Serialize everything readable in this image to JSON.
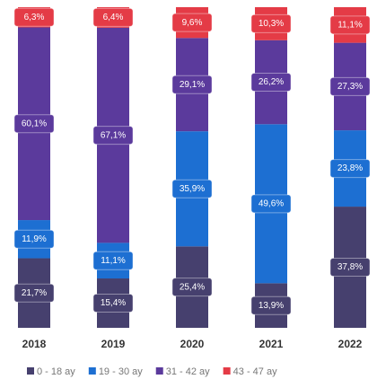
{
  "chart_data": {
    "type": "stacked_bar_percent",
    "categories": [
      "2018",
      "2019",
      "2020",
      "2021",
      "2022"
    ],
    "series": [
      {
        "name": "0 - 18 ay",
        "color": "#46406e",
        "values": [
          21.7,
          15.4,
          25.4,
          13.9,
          37.8
        ],
        "value_labels": [
          "21,7%",
          "15,4%",
          "25,4%",
          "13,9%",
          "37,8%"
        ]
      },
      {
        "name": "19 - 30 ay",
        "color": "#1d6fd2",
        "values": [
          11.9,
          11.1,
          35.9,
          49.6,
          23.8
        ],
        "value_labels": [
          "11,9%",
          "11,1%",
          "35,9%",
          "49,6%",
          "23,8%"
        ]
      },
      {
        "name": "31 - 42 ay",
        "color": "#5b3a9c",
        "values": [
          60.1,
          67.1,
          29.1,
          26.2,
          27.3
        ],
        "value_labels": [
          "60,1%",
          "67,1%",
          "29,1%",
          "26,2%",
          "27,3%"
        ]
      },
      {
        "name": "43 - 47 ay",
        "color": "#e43b46",
        "values": [
          6.3,
          6.4,
          9.6,
          10.3,
          11.1
        ],
        "value_labels": [
          "6,3%",
          "6,4%",
          "9,6%",
          "10,3%",
          "11,1%"
        ]
      }
    ]
  }
}
